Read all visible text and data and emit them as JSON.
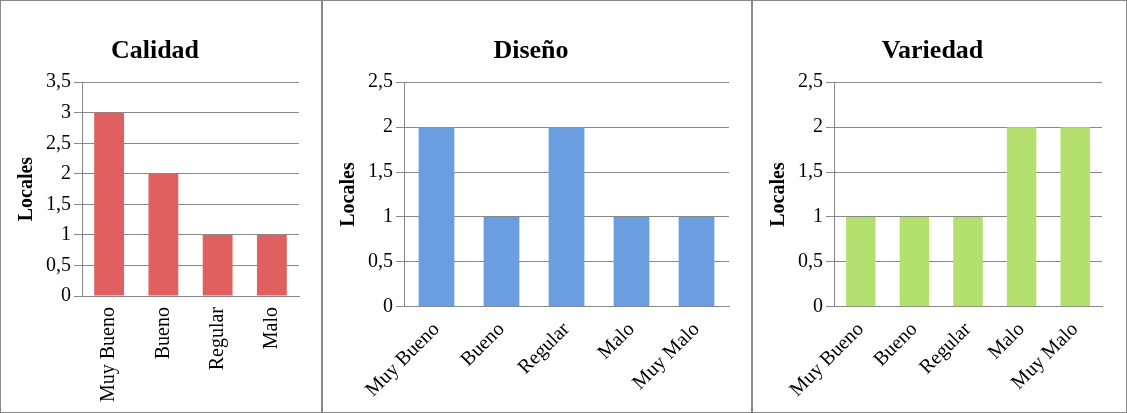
{
  "chart_data": [
    {
      "type": "bar",
      "title": "Calidad",
      "ylabel": "Locales",
      "categories": [
        "Muy Bueno",
        "Bueno",
        "Regular",
        "Malo"
      ],
      "values": [
        3,
        2,
        1,
        1
      ],
      "color": "#e06060",
      "ylim": [
        0,
        3.5
      ],
      "yticks": [
        0,
        {
          "value": 0.5,
          "label": "0,5"
        },
        1,
        {
          "value": 1.5,
          "label": "1,5"
        },
        2,
        {
          "value": 2.5,
          "label": "2,5"
        },
        3,
        {
          "value": 3.5,
          "label": "3,5"
        }
      ],
      "grid": "y",
      "legend": false
    },
    {
      "type": "bar",
      "title": "Diseño",
      "ylabel": "Locales",
      "categories": [
        "Muy Bueno",
        "Bueno",
        "Regular",
        "Malo",
        "Muy Malo"
      ],
      "values": [
        2,
        1,
        2,
        1,
        1
      ],
      "color": "#6a9ee0",
      "ylim": [
        0,
        2.5
      ],
      "yticks": [
        0,
        {
          "value": 0.5,
          "label": "0,5"
        },
        1,
        {
          "value": 1.5,
          "label": "1,5"
        },
        2,
        {
          "value": 2.5,
          "label": "2,5"
        }
      ],
      "grid": "y",
      "legend": false
    },
    {
      "type": "bar",
      "title": "Variedad",
      "ylabel": "Locales",
      "categories": [
        "Muy Bueno",
        "Bueno",
        "Regular",
        "Malo",
        "Muy Malo"
      ],
      "values": [
        1,
        1,
        1,
        2,
        2
      ],
      "color": "#b4e070",
      "ylim": [
        0,
        2.5
      ],
      "yticks": [
        0,
        {
          "value": 0.5,
          "label": "0,5"
        },
        1,
        {
          "value": 1.5,
          "label": "1,5"
        },
        2,
        {
          "value": 2.5,
          "label": "2,5"
        }
      ],
      "grid": "y",
      "legend": false
    }
  ]
}
